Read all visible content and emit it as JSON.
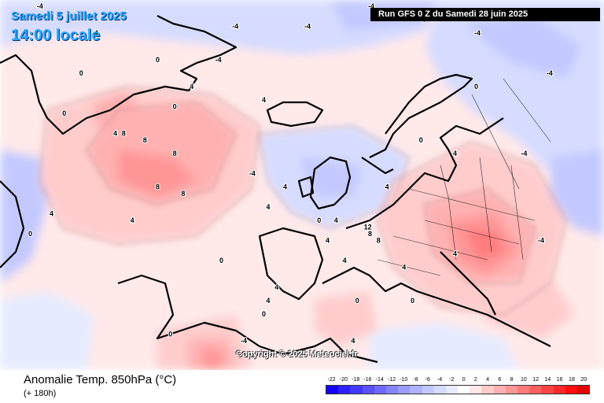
{
  "header": {
    "date": "Samedi 5 juillet 2025",
    "time": "14:00 locale",
    "run": "Run GFS 0 Z du Samedi 28 juin 2025"
  },
  "copyright": "Copyright © 2025 Meteociel.fr",
  "footer": {
    "title": "Anomalie Temp. 850hPa (°C)",
    "subtitle": "(+ 180h)"
  },
  "legend": {
    "labels": [
      "-22",
      "-20",
      "-18",
      "-16",
      "-14",
      "-12",
      "-10",
      "-8",
      "-6",
      "-4",
      "-2",
      "0",
      "2",
      "4",
      "6",
      "8",
      "10",
      "12",
      "14",
      "16",
      "18",
      "20"
    ],
    "colors": [
      "#1400ff",
      "#2b22ff",
      "#4237ff",
      "#5a50ff",
      "#6f6aff",
      "#8584ff",
      "#9a9cff",
      "#aeb2ff",
      "#c3c9ff",
      "#d6dcff",
      "#e6ebff",
      "#ffffff",
      "#ffe7e7",
      "#ffcccc",
      "#ffb1b1",
      "#ff9696",
      "#ff7b7b",
      "#ff5f5f",
      "#ff4343",
      "#ff2727",
      "#ff0c0c",
      "#e60000"
    ]
  },
  "map": {
    "contour_labels": [
      {
        "text": "-4",
        "x": -58,
        "y": 82
      },
      {
        "text": "-4",
        "x": -45,
        "y": 78
      },
      {
        "text": "-4",
        "x": -12,
        "y": 79
      },
      {
        "text": "-4",
        "x": -16,
        "y": 74
      },
      {
        "text": "-4",
        "x": 5,
        "y": 79
      },
      {
        "text": "-4",
        "x": 20,
        "y": 82
      },
      {
        "text": "-4",
        "x": 32,
        "y": 80
      },
      {
        "text": "-4",
        "x": 45,
        "y": 78
      },
      {
        "text": "0",
        "x": -30,
        "y": 74
      },
      {
        "text": "0",
        "x": -48,
        "y": 72
      },
      {
        "text": "0",
        "x": -52,
        "y": 66
      },
      {
        "text": "0",
        "x": -26,
        "y": 67
      },
      {
        "text": "4",
        "x": -40,
        "y": 63
      },
      {
        "text": "4",
        "x": -22,
        "y": 70
      },
      {
        "text": "4",
        "x": -5,
        "y": 68
      },
      {
        "text": "4",
        "x": -36,
        "y": 50
      },
      {
        "text": "8",
        "x": -38,
        "y": 63
      },
      {
        "text": "8",
        "x": -33,
        "y": 62
      },
      {
        "text": "8",
        "x": -26,
        "y": 60
      },
      {
        "text": "8",
        "x": -30,
        "y": 55
      },
      {
        "text": "8",
        "x": -24,
        "y": 54
      },
      {
        "text": "4",
        "x": -4,
        "y": 52
      },
      {
        "text": "4",
        "x": 0,
        "y": 55
      },
      {
        "text": "-4",
        "x": -8,
        "y": 57
      },
      {
        "text": "0",
        "x": -15,
        "y": 44
      },
      {
        "text": "0",
        "x": -27,
        "y": 33
      },
      {
        "text": "0",
        "x": -5,
        "y": 36
      },
      {
        "text": "4",
        "x": 12,
        "y": 50
      },
      {
        "text": "0",
        "x": 8,
        "y": 50
      },
      {
        "text": "4",
        "x": -4,
        "y": 38
      },
      {
        "text": "4",
        "x": -2,
        "y": 40
      },
      {
        "text": "-4",
        "x": -10,
        "y": 32
      },
      {
        "text": "4",
        "x": 14,
        "y": 44
      },
      {
        "text": "0",
        "x": 17,
        "y": 38
      },
      {
        "text": "4",
        "x": 10,
        "y": 47
      },
      {
        "text": "8",
        "x": 20,
        "y": 48
      },
      {
        "text": "12",
        "x": 19,
        "y": 49
      },
      {
        "text": "8",
        "x": 22,
        "y": 47
      },
      {
        "text": "4",
        "x": 24,
        "y": 55
      },
      {
        "text": "4",
        "x": 28,
        "y": 43
      },
      {
        "text": "0",
        "x": 30,
        "y": 38
      },
      {
        "text": "4",
        "x": 16,
        "y": 32
      },
      {
        "text": "4",
        "x": 40,
        "y": 60
      },
      {
        "text": "-4",
        "x": 60,
        "y": 47
      },
      {
        "text": "-4",
        "x": 56,
        "y": 60
      },
      {
        "text": "-4",
        "x": 62,
        "y": 72
      },
      {
        "text": "0",
        "x": 45,
        "y": 70
      },
      {
        "text": "0",
        "x": 32,
        "y": 62
      },
      {
        "text": "4",
        "x": -55,
        "y": 51
      },
      {
        "text": "-4",
        "x": -66,
        "y": 53
      },
      {
        "text": "0",
        "x": -60,
        "y": 48
      },
      {
        "text": "4",
        "x": 40,
        "y": 45
      }
    ]
  }
}
